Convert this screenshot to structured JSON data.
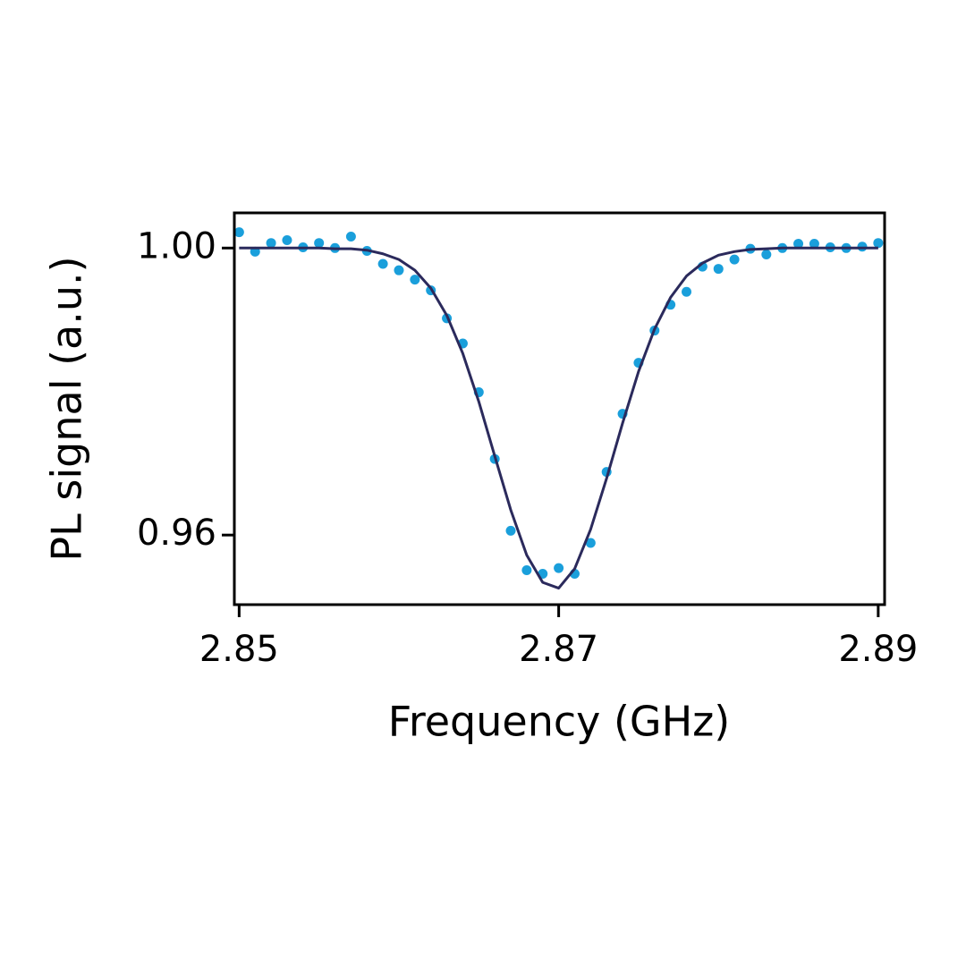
{
  "chart_data": {
    "type": "line",
    "x_label": "Frequency (GHz)",
    "y_label": "PL signal (a.u.)",
    "x": [
      2.85,
      2.851,
      2.852,
      2.853,
      2.854,
      2.855,
      2.856,
      2.857,
      2.858,
      2.859,
      2.86,
      2.861,
      2.862,
      2.863,
      2.864,
      2.865,
      2.866,
      2.867,
      2.868,
      2.869,
      2.87,
      2.871,
      2.872,
      2.873,
      2.874,
      2.875,
      2.876,
      2.877,
      2.878,
      2.879,
      2.88,
      2.881,
      2.882,
      2.883,
      2.884,
      2.885,
      2.886,
      2.887,
      2.888,
      2.889,
      2.89
    ],
    "series": [
      {
        "type": "scatter",
        "color": "#1a9fdb",
        "values": [
          1.0022,
          0.9995,
          1.0007,
          1.0011,
          1.0001,
          1.0007,
          1.0,
          1.0016,
          0.9996,
          0.9978,
          0.9969,
          0.9956,
          0.9941,
          0.9902,
          0.9867,
          0.9799,
          0.9706,
          0.9606,
          0.9551,
          0.9546,
          0.9554,
          0.9546,
          0.9589,
          0.9688,
          0.9769,
          0.984,
          0.9885,
          0.9921,
          0.9939,
          0.9974,
          0.9971,
          0.9984,
          0.9999,
          0.9991,
          1.0,
          1.0006,
          1.0006,
          1.0001,
          1.0,
          1.0002,
          1.0007
        ]
      },
      {
        "type": "line",
        "color": "#2b2a5c",
        "values": [
          1.0,
          1.0,
          1.0,
          1.0,
          1.0,
          1.0,
          0.9999,
          0.9999,
          0.9997,
          0.9992,
          0.9984,
          0.9969,
          0.9944,
          0.9906,
          0.9853,
          0.9786,
          0.971,
          0.9635,
          0.9572,
          0.9534,
          0.9526,
          0.9553,
          0.9608,
          0.9679,
          0.9756,
          0.9828,
          0.9887,
          0.9931,
          0.9961,
          0.9979,
          0.999,
          0.9995,
          0.9998,
          0.9999,
          1.0,
          1.0,
          1.0,
          1.0,
          1.0,
          1.0,
          1.0
        ]
      }
    ],
    "xlim": [
      2.8497,
      2.8904
    ],
    "ylim": [
      0.9503,
      1.0049
    ],
    "xticks": [
      2.85,
      2.87,
      2.89
    ],
    "yticks": [
      {
        "value": 0.96,
        "label": "0.96"
      },
      {
        "value": 1.0,
        "label": "1.00"
      }
    ],
    "grid": false
  }
}
